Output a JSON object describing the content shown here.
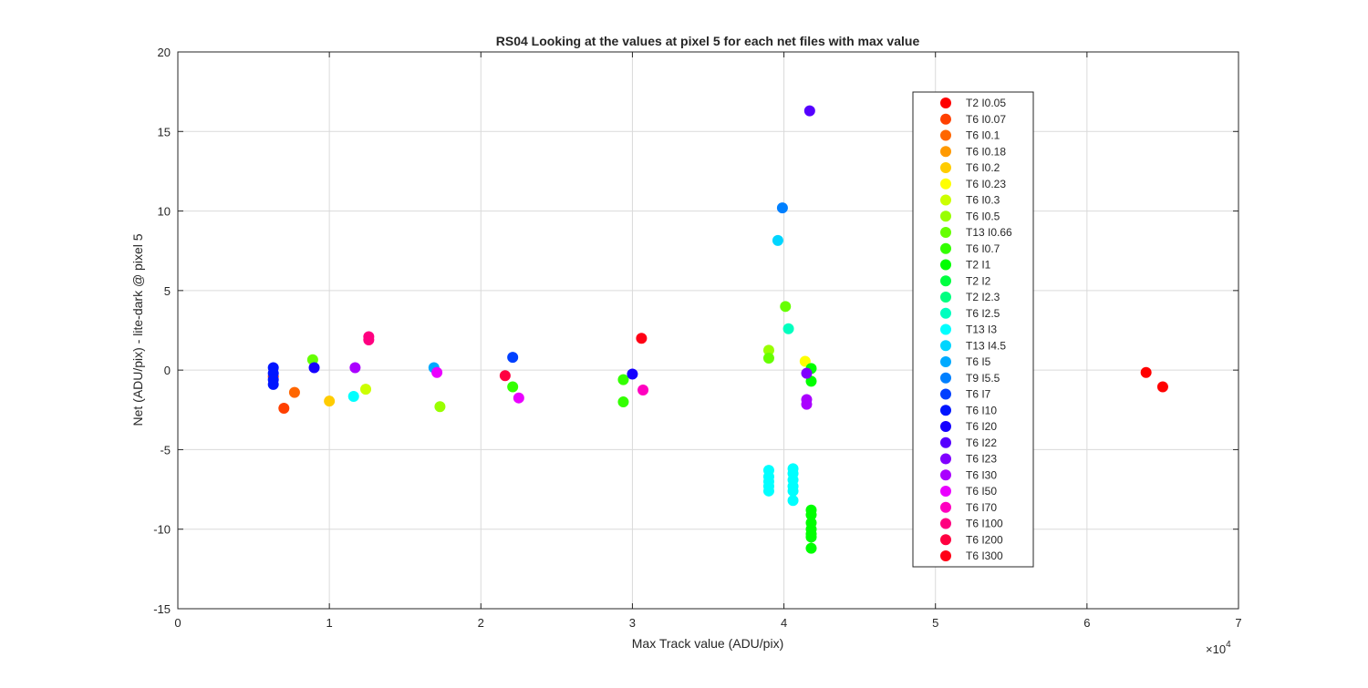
{
  "chart_data": {
    "type": "scatter",
    "title": "RS04  Looking at the values at pixel 5 for each net files with max value",
    "xlabel": "Max Track value (ADU/pix)",
    "ylabel": "Net (ADU/pix) - lite-dark @ pixel 5",
    "x_exponent_label": "×10",
    "x_exponent_power": "4",
    "xlim": [
      0,
      70000
    ],
    "ylim": [
      -15,
      20
    ],
    "x_tick_values": [
      0,
      10000,
      20000,
      30000,
      40000,
      50000,
      60000,
      70000
    ],
    "x_tick_labels": [
      "0",
      "1",
      "2",
      "3",
      "4",
      "5",
      "6",
      "7"
    ],
    "y_tick_values": [
      -15,
      -10,
      -5,
      0,
      5,
      10,
      15,
      20
    ],
    "y_tick_labels": [
      "-15",
      "-10",
      "-5",
      "0",
      "5",
      "10",
      "15",
      "20"
    ],
    "grid": true,
    "legend_position": "top-right",
    "series": [
      {
        "name": "T2 I0.05",
        "color": "#ff0000",
        "points": [
          [
            63900,
            -0.15
          ],
          [
            65000,
            -1.05
          ]
        ]
      },
      {
        "name": "T6 I0.07",
        "color": "#ff4000",
        "points": [
          [
            6300,
            -0.4
          ],
          [
            7000,
            -2.4
          ]
        ]
      },
      {
        "name": "T6 I0.1",
        "color": "#ff6600",
        "points": [
          [
            7700,
            -1.4
          ]
        ]
      },
      {
        "name": "T6 I0.18",
        "color": "#ff9900",
        "points": []
      },
      {
        "name": "T6 I0.2",
        "color": "#ffcc00",
        "points": [
          [
            10000,
            -1.95
          ]
        ]
      },
      {
        "name": "T6 I0.23",
        "color": "#ffff00",
        "points": [
          [
            41400,
            0.55
          ]
        ]
      },
      {
        "name": "T6 I0.3",
        "color": "#ccff00",
        "points": [
          [
            12400,
            -1.2
          ]
        ]
      },
      {
        "name": "T6 I0.5",
        "color": "#99ff00",
        "points": [
          [
            17300,
            -2.3
          ],
          [
            39000,
            1.25
          ]
        ]
      },
      {
        "name": "T13 I0.66",
        "color": "#66ff00",
        "points": [
          [
            8900,
            0.65
          ],
          [
            40100,
            4.0
          ],
          [
            39000,
            0.75
          ]
        ]
      },
      {
        "name": "T6 I0.7",
        "color": "#33ff00",
        "points": [
          [
            22100,
            -1.05
          ],
          [
            29400,
            -0.6
          ],
          [
            29400,
            -2.0
          ]
        ]
      },
      {
        "name": "T2 I1",
        "color": "#00ff00",
        "points": [
          [
            41800,
            0.1
          ],
          [
            41800,
            -0.7
          ],
          [
            41800,
            -8.8
          ],
          [
            41800,
            -9.1
          ],
          [
            41800,
            -9.6
          ],
          [
            41800,
            -10.0
          ],
          [
            41800,
            -10.3
          ],
          [
            41800,
            -10.5
          ],
          [
            41800,
            -11.2
          ]
        ]
      },
      {
        "name": "T2 I2",
        "color": "#00ff40",
        "points": []
      },
      {
        "name": "T2 I2.3",
        "color": "#00ff80",
        "points": []
      },
      {
        "name": "T6 I2.5",
        "color": "#00ffbf",
        "points": [
          [
            40300,
            2.6
          ]
        ]
      },
      {
        "name": "T13 I3",
        "color": "#00ffff",
        "points": [
          [
            11600,
            -1.65
          ],
          [
            39000,
            -6.3
          ],
          [
            39000,
            -6.7
          ],
          [
            39000,
            -7.0
          ],
          [
            39000,
            -7.3
          ],
          [
            39000,
            -7.6
          ],
          [
            40600,
            -6.2
          ],
          [
            40600,
            -6.5
          ],
          [
            40600,
            -6.9
          ],
          [
            40600,
            -7.3
          ],
          [
            40600,
            -7.6
          ],
          [
            40600,
            -8.2
          ]
        ]
      },
      {
        "name": "T13 I4.5",
        "color": "#00d5ff",
        "points": [
          [
            39600,
            8.15
          ]
        ]
      },
      {
        "name": "T6 I5",
        "color": "#00aaff",
        "points": [
          [
            16900,
            0.15
          ]
        ]
      },
      {
        "name": "T9 I5.5",
        "color": "#0080ff",
        "points": [
          [
            39900,
            10.2
          ]
        ]
      },
      {
        "name": "T6 I7",
        "color": "#0040ff",
        "points": [
          [
            22100,
            0.8
          ]
        ]
      },
      {
        "name": "T6 I10",
        "color": "#0015ff",
        "points": [
          [
            6300,
            0.15
          ],
          [
            6300,
            -0.2
          ],
          [
            6300,
            -0.6
          ],
          [
            6300,
            -0.9
          ]
        ]
      },
      {
        "name": "T6 I20",
        "color": "#1500ff",
        "points": [
          [
            9000,
            0.15
          ],
          [
            30000,
            -0.25
          ]
        ]
      },
      {
        "name": "T6 I22",
        "color": "#5500ff",
        "points": [
          [
            41700,
            16.3
          ]
        ]
      },
      {
        "name": "T6 I23",
        "color": "#8000ff",
        "points": [
          [
            41500,
            -0.2
          ]
        ]
      },
      {
        "name": "T6 I30",
        "color": "#aa00ff",
        "points": [
          [
            11700,
            0.15
          ],
          [
            41500,
            -1.85
          ],
          [
            41500,
            -2.15
          ]
        ]
      },
      {
        "name": "T6 I50",
        "color": "#ea00ff",
        "points": [
          [
            17100,
            -0.15
          ],
          [
            22500,
            -1.75
          ]
        ]
      },
      {
        "name": "T6 I70",
        "color": "#ff00bf",
        "points": [
          [
            30700,
            -1.25
          ]
        ]
      },
      {
        "name": "T6 I100",
        "color": "#ff0080",
        "points": [
          [
            12600,
            2.1
          ],
          [
            12600,
            1.9
          ]
        ]
      },
      {
        "name": "T6 I200",
        "color": "#ff0040",
        "points": [
          [
            21600,
            -0.35
          ]
        ]
      },
      {
        "name": "T6 I300",
        "color": "#ff0015",
        "points": [
          [
            30600,
            2.0
          ]
        ]
      }
    ]
  }
}
